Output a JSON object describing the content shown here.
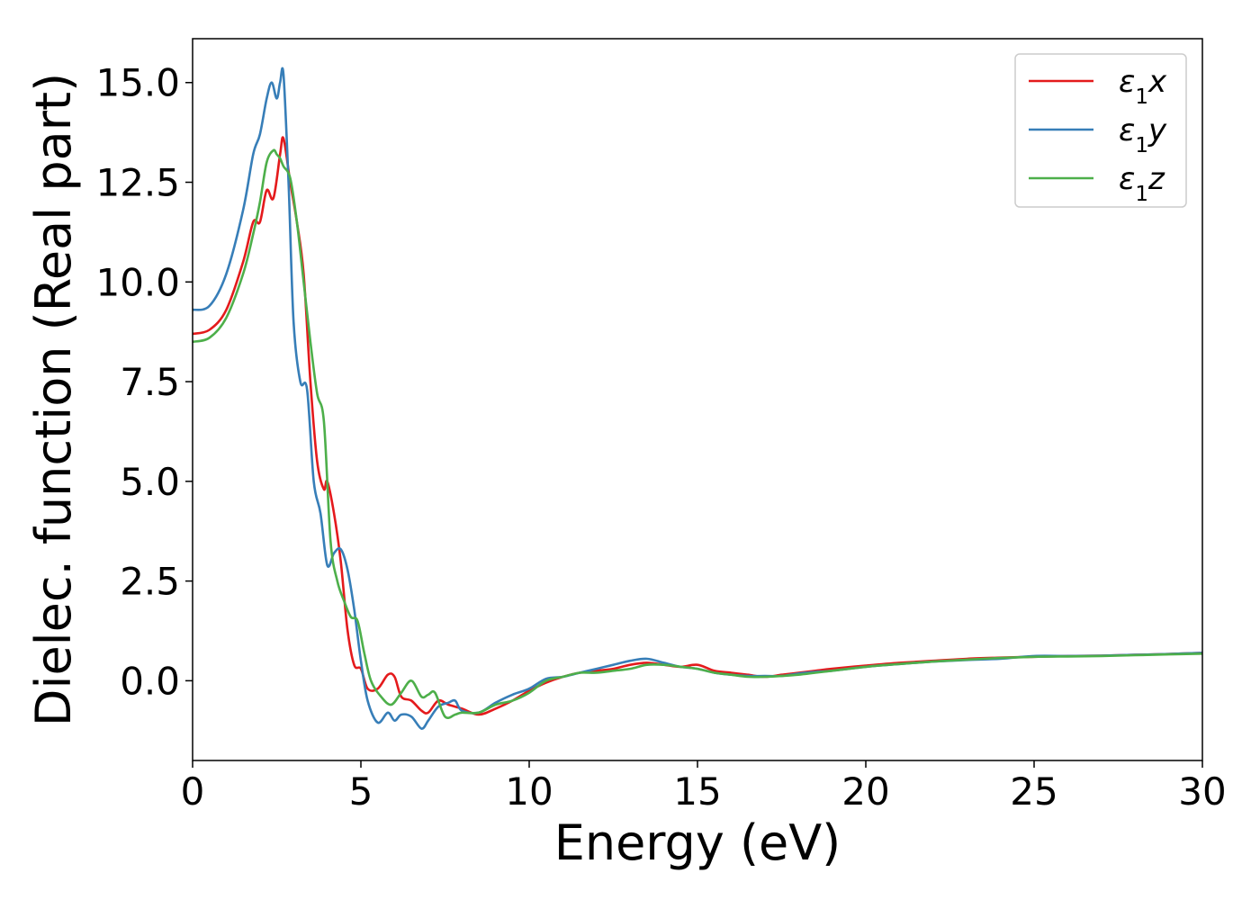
{
  "chart_data": {
    "type": "line",
    "xlabel": "Energy (eV)",
    "ylabel": "Dielec. function (Real part)",
    "xlim": [
      0,
      30
    ],
    "ylim": [
      -2.0,
      16.1
    ],
    "x_ticks": [
      "0",
      "5",
      "10",
      "15",
      "20",
      "25",
      "30"
    ],
    "y_ticks": [
      "0.0",
      "2.5",
      "5.0",
      "7.5",
      "10.0",
      "12.5",
      "15.0"
    ],
    "x_tick_values": [
      0,
      5,
      10,
      15,
      20,
      25,
      30
    ],
    "y_tick_values": [
      0,
      2.5,
      5.0,
      7.5,
      10.0,
      12.5,
      15.0
    ],
    "legend_position": "top-right",
    "series": [
      {
        "name": "ε₁x",
        "legend_main": "ε",
        "legend_sub": "1",
        "legend_suffix": "x",
        "color": "#e41a1c",
        "x": [
          0,
          0.5,
          1.0,
          1.5,
          1.8,
          2.0,
          2.2,
          2.4,
          2.6,
          2.7,
          2.9,
          3.1,
          3.3,
          3.5,
          3.7,
          3.9,
          4.0,
          4.2,
          4.4,
          4.6,
          4.8,
          5.0,
          5.2,
          5.5,
          5.8,
          6.0,
          6.2,
          6.5,
          6.8,
          7.0,
          7.3,
          7.6,
          8.0,
          8.5,
          9.0,
          9.5,
          10.0,
          10.5,
          11.0,
          11.5,
          12.0,
          12.5,
          13.0,
          13.5,
          14.0,
          14.5,
          15.0,
          15.5,
          16.0,
          16.5,
          17.0,
          17.5,
          18.0,
          18.5,
          19.0,
          20.0,
          21.0,
          22.0,
          23.0,
          24.0,
          25.0,
          26.0,
          27.0,
          28.0,
          29.0,
          30.0
        ],
        "y": [
          8.7,
          8.8,
          9.3,
          10.5,
          11.5,
          11.5,
          12.3,
          12.1,
          13.2,
          13.6,
          12.5,
          11.5,
          10.2,
          7.5,
          5.5,
          4.8,
          5.0,
          4.2,
          3.0,
          1.3,
          0.4,
          0.3,
          -0.2,
          -0.2,
          0.15,
          0.1,
          -0.4,
          -0.5,
          -0.75,
          -0.8,
          -0.5,
          -0.6,
          -0.7,
          -0.85,
          -0.7,
          -0.5,
          -0.25,
          -0.05,
          0.1,
          0.2,
          0.25,
          0.3,
          0.4,
          0.45,
          0.4,
          0.35,
          0.4,
          0.25,
          0.2,
          0.15,
          0.1,
          0.15,
          0.2,
          0.25,
          0.3,
          0.38,
          0.45,
          0.5,
          0.55,
          0.58,
          0.6,
          0.62,
          0.63,
          0.65,
          0.67,
          0.7
        ]
      },
      {
        "name": "ε₁y",
        "legend_main": "ε",
        "legend_sub": "1",
        "legend_suffix": "y",
        "color": "#377eb8",
        "x": [
          0,
          0.5,
          1.0,
          1.5,
          1.8,
          2.0,
          2.2,
          2.35,
          2.5,
          2.6,
          2.7,
          2.85,
          3.0,
          3.2,
          3.4,
          3.6,
          3.8,
          4.0,
          4.2,
          4.4,
          4.6,
          4.8,
          5.0,
          5.2,
          5.5,
          5.8,
          6.0,
          6.2,
          6.5,
          6.8,
          7.0,
          7.3,
          7.6,
          7.8,
          8.0,
          8.5,
          9.0,
          9.5,
          10.0,
          10.5,
          11.0,
          11.5,
          12.0,
          12.5,
          13.0,
          13.5,
          14.0,
          14.5,
          15.0,
          15.5,
          16.0,
          16.5,
          17.0,
          17.5,
          18.0,
          18.5,
          19.0,
          20.0,
          21.0,
          22.0,
          23.0,
          24.0,
          25.0,
          26.0,
          27.0,
          28.0,
          29.0,
          30.0
        ],
        "y": [
          9.3,
          9.4,
          10.2,
          11.8,
          13.2,
          13.7,
          14.6,
          15.0,
          14.6,
          15.0,
          15.2,
          12.5,
          9.0,
          7.5,
          7.3,
          5.0,
          4.2,
          2.9,
          3.2,
          3.3,
          2.8,
          1.8,
          0.5,
          -0.5,
          -1.05,
          -0.8,
          -1.0,
          -0.85,
          -0.9,
          -1.2,
          -1.0,
          -0.65,
          -0.55,
          -0.5,
          -0.75,
          -0.8,
          -0.55,
          -0.35,
          -0.2,
          0.05,
          0.1,
          0.2,
          0.3,
          0.4,
          0.5,
          0.55,
          0.45,
          0.35,
          0.3,
          0.2,
          0.15,
          0.12,
          0.12,
          0.12,
          0.18,
          0.22,
          0.25,
          0.35,
          0.42,
          0.48,
          0.52,
          0.55,
          0.62,
          0.62,
          0.63,
          0.65,
          0.67,
          0.7
        ]
      },
      {
        "name": "ε₁z",
        "legend_main": "ε",
        "legend_sub": "1",
        "legend_suffix": "z",
        "color": "#4daf4a",
        "x": [
          0,
          0.5,
          1.0,
          1.5,
          1.8,
          2.0,
          2.2,
          2.4,
          2.5,
          2.6,
          2.7,
          2.9,
          3.1,
          3.3,
          3.5,
          3.7,
          3.9,
          4.1,
          4.3,
          4.5,
          4.7,
          4.9,
          5.1,
          5.3,
          5.6,
          5.9,
          6.2,
          6.5,
          6.8,
          7.0,
          7.2,
          7.5,
          7.8,
          8.0,
          8.5,
          9.0,
          9.5,
          10.0,
          10.5,
          11.0,
          11.5,
          12.0,
          12.5,
          13.0,
          13.5,
          14.0,
          14.5,
          15.0,
          15.5,
          16.0,
          16.5,
          17.0,
          17.5,
          18.0,
          18.5,
          19.0,
          20.0,
          21.0,
          22.0,
          23.0,
          24.0,
          25.0,
          26.0,
          27.0,
          28.0,
          29.0,
          30.0
        ],
        "y": [
          8.5,
          8.6,
          9.1,
          10.2,
          11.2,
          12.0,
          13.0,
          13.3,
          13.2,
          13.1,
          12.9,
          12.6,
          11.5,
          10.0,
          8.5,
          7.2,
          6.5,
          3.5,
          2.5,
          2.0,
          1.6,
          1.5,
          0.7,
          0.0,
          -0.4,
          -0.6,
          -0.3,
          0.0,
          -0.4,
          -0.35,
          -0.3,
          -0.9,
          -0.85,
          -0.8,
          -0.8,
          -0.6,
          -0.5,
          -0.3,
          0.0,
          0.1,
          0.2,
          0.2,
          0.25,
          0.3,
          0.4,
          0.4,
          0.35,
          0.3,
          0.2,
          0.15,
          0.1,
          0.1,
          0.12,
          0.15,
          0.2,
          0.25,
          0.35,
          0.42,
          0.48,
          0.53,
          0.57,
          0.6,
          0.61,
          0.62,
          0.64,
          0.66,
          0.68
        ]
      }
    ]
  }
}
